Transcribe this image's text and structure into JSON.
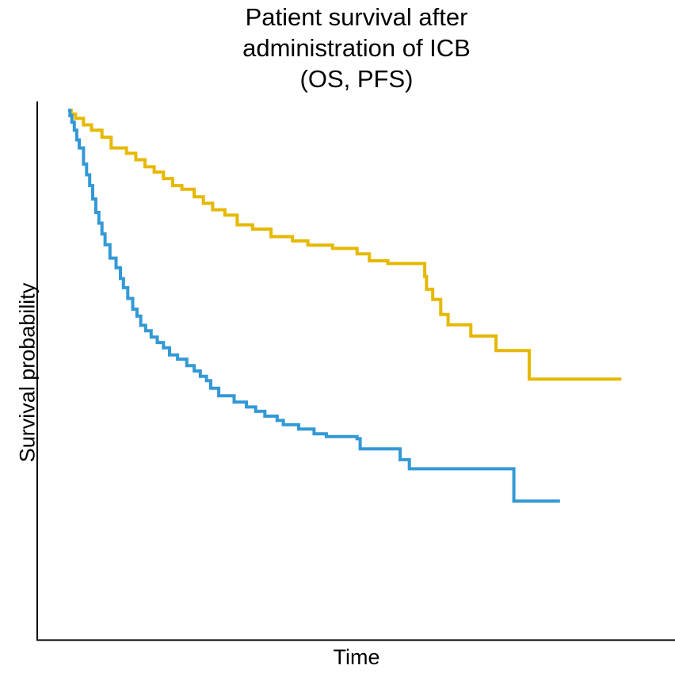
{
  "chart_data": {
    "type": "line",
    "title": [
      "Patient survival after",
      "administration of ICB",
      "(OS, PFS)"
    ],
    "xlabel": "Time",
    "ylabel": "Survival probability",
    "x_ticks_shown": false,
    "y_ticks_shown": false,
    "grid": false,
    "legend": "none",
    "step": true,
    "xlim": [
      0,
      1.0
    ],
    "ylim": [
      0.0,
      1.0
    ],
    "series": [
      {
        "color": "#E6B800",
        "points": [
          [
            0.0,
            0.985
          ],
          [
            0.005,
            0.978
          ],
          [
            0.012,
            0.97
          ],
          [
            0.025,
            0.958
          ],
          [
            0.038,
            0.948
          ],
          [
            0.055,
            0.935
          ],
          [
            0.07,
            0.915
          ],
          [
            0.095,
            0.905
          ],
          [
            0.11,
            0.893
          ],
          [
            0.125,
            0.88
          ],
          [
            0.14,
            0.87
          ],
          [
            0.155,
            0.858
          ],
          [
            0.17,
            0.845
          ],
          [
            0.185,
            0.838
          ],
          [
            0.205,
            0.824
          ],
          [
            0.22,
            0.812
          ],
          [
            0.235,
            0.8
          ],
          [
            0.255,
            0.79
          ],
          [
            0.275,
            0.772
          ],
          [
            0.3,
            0.764
          ],
          [
            0.33,
            0.75
          ],
          [
            0.365,
            0.742
          ],
          [
            0.39,
            0.734
          ],
          [
            0.43,
            0.728
          ],
          [
            0.47,
            0.718
          ],
          [
            0.49,
            0.705
          ],
          [
            0.52,
            0.7
          ],
          [
            0.58,
            0.676
          ],
          [
            0.583,
            0.652
          ],
          [
            0.593,
            0.633
          ],
          [
            0.606,
            0.605
          ],
          [
            0.618,
            0.586
          ],
          [
            0.655,
            0.565
          ],
          [
            0.696,
            0.538
          ],
          [
            0.75,
            0.485
          ],
          [
            0.9,
            0.485
          ]
        ]
      },
      {
        "color": "#3399D6",
        "points": [
          [
            0.0,
            0.985
          ],
          [
            0.003,
            0.975
          ],
          [
            0.006,
            0.963
          ],
          [
            0.01,
            0.948
          ],
          [
            0.014,
            0.93
          ],
          [
            0.018,
            0.915
          ],
          [
            0.025,
            0.885
          ],
          [
            0.03,
            0.865
          ],
          [
            0.035,
            0.845
          ],
          [
            0.04,
            0.82
          ],
          [
            0.045,
            0.795
          ],
          [
            0.05,
            0.775
          ],
          [
            0.055,
            0.755
          ],
          [
            0.06,
            0.735
          ],
          [
            0.068,
            0.71
          ],
          [
            0.078,
            0.692
          ],
          [
            0.085,
            0.672
          ],
          [
            0.09,
            0.655
          ],
          [
            0.097,
            0.635
          ],
          [
            0.105,
            0.615
          ],
          [
            0.112,
            0.602
          ],
          [
            0.118,
            0.585
          ],
          [
            0.126,
            0.575
          ],
          [
            0.135,
            0.563
          ],
          [
            0.145,
            0.553
          ],
          [
            0.155,
            0.543
          ],
          [
            0.165,
            0.53
          ],
          [
            0.178,
            0.522
          ],
          [
            0.193,
            0.51
          ],
          [
            0.205,
            0.5
          ],
          [
            0.215,
            0.49
          ],
          [
            0.225,
            0.482
          ],
          [
            0.232,
            0.468
          ],
          [
            0.245,
            0.454
          ],
          [
            0.27,
            0.442
          ],
          [
            0.29,
            0.433
          ],
          [
            0.305,
            0.425
          ],
          [
            0.32,
            0.416
          ],
          [
            0.34,
            0.408
          ],
          [
            0.35,
            0.4
          ],
          [
            0.375,
            0.392
          ],
          [
            0.4,
            0.383
          ],
          [
            0.42,
            0.378
          ],
          [
            0.47,
            0.374
          ],
          [
            0.475,
            0.355
          ],
          [
            0.54,
            0.335
          ],
          [
            0.555,
            0.318
          ],
          [
            0.72,
            0.318
          ],
          [
            0.725,
            0.258
          ],
          [
            0.8,
            0.258
          ]
        ]
      }
    ]
  }
}
